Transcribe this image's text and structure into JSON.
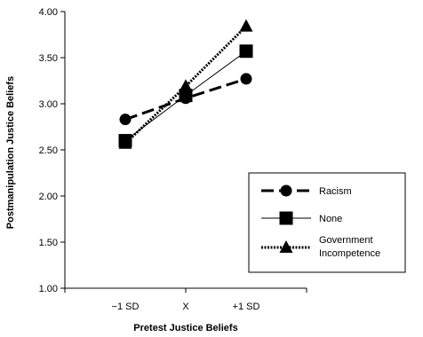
{
  "chart_data": {
    "type": "line",
    "categories": [
      "−1 SD",
      "X",
      "+1 SD"
    ],
    "xlabel": "Pretest Justice Beliefs",
    "ylabel": "Postmanipulation Justice Beliefs",
    "ylim": [
      1.0,
      4.0
    ],
    "yticks": [
      "1.00",
      "1.50",
      "2.00",
      "2.50",
      "3.00",
      "3.50",
      "4.00"
    ],
    "grid": false,
    "legend_position": "right",
    "series": [
      {
        "name": "Racism",
        "values": [
          2.83,
          3.06,
          3.27
        ],
        "marker": "circle",
        "line_style": "dashed",
        "color": "#000000"
      },
      {
        "name": "None",
        "values": [
          2.6,
          3.09,
          3.57
        ],
        "marker": "square",
        "line_style": "solid",
        "color": "#000000"
      },
      {
        "name": "Government Incompetence",
        "name_lines": [
          "Government",
          "Incompetence"
        ],
        "values": [
          2.57,
          3.19,
          3.84
        ],
        "marker": "triangle",
        "line_style": "dotted",
        "color": "#000000"
      }
    ]
  }
}
